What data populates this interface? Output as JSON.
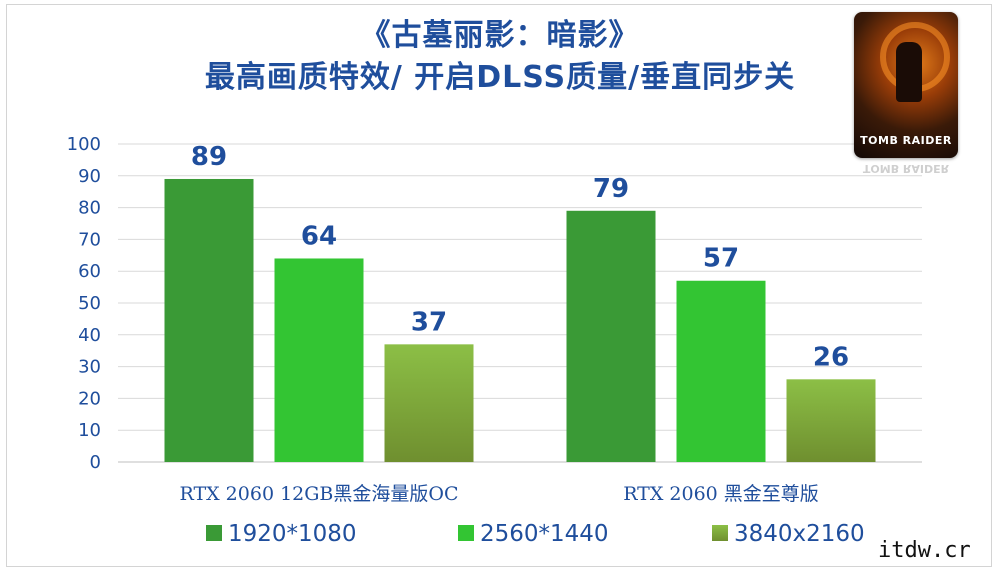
{
  "chart_data": {
    "type": "bar",
    "title": "《古墓丽影：暗影》",
    "subtitle": "最高画质特效/ 开启DLSS质量/垂直同步关",
    "categories": [
      "RTX 2060 12GB黑金海量版OC",
      "RTX 2060 黑金至尊版"
    ],
    "series": [
      {
        "name": "1920*1080",
        "values": [
          89,
          79
        ],
        "color": "#3a9a36"
      },
      {
        "name": "2560*1440",
        "values": [
          64,
          57
        ],
        "color": "#33c533"
      },
      {
        "name": "3840x2160",
        "values": [
          37,
          26
        ],
        "color": "#8cbf46"
      }
    ],
    "ylim": [
      0,
      100
    ],
    "yticks": [
      0,
      10,
      20,
      30,
      40,
      50,
      60,
      70,
      80,
      90,
      100
    ],
    "grid": true,
    "legend_position": "bottom",
    "colors": {
      "value_label": "#1f4e9c",
      "axis_text": "#1f4e9c",
      "grid": "#d9d9d9"
    }
  },
  "cover": {
    "text": "TOMB RAIDER",
    "reflection_text": "TOMB RAIDER"
  },
  "watermark": "itdw.cr"
}
